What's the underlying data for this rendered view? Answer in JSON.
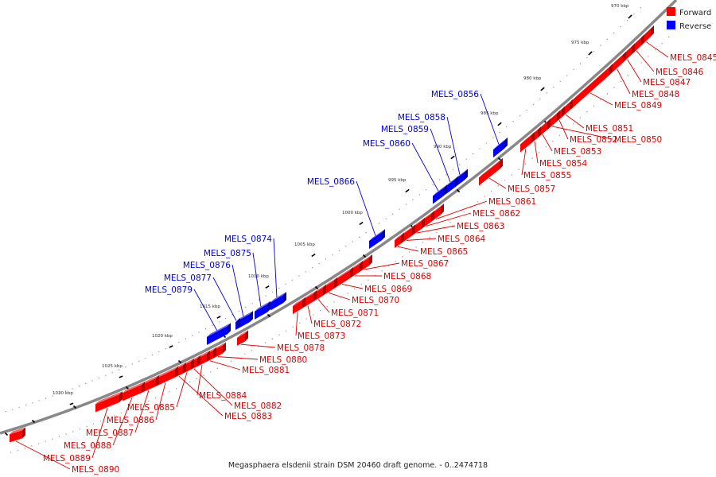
{
  "caption": "Megasphaera elsdenii strain DSM 20460 draft genome. - 0..2474718",
  "legend": [
    {
      "label": "Forward",
      "color": "#ff0000"
    },
    {
      "label": "Reverse",
      "color": "#0000ff"
    }
  ],
  "colors": {
    "forward": "#ff0000",
    "reverse": "#0000ff",
    "backbone": "#888888"
  },
  "ticks": [
    "970 kbp",
    "975 kbp",
    "980 kbp",
    "985 kbp",
    "990 kbp",
    "995 kbp",
    "1000 kbp",
    "1005 kbp",
    "1010 kbp",
    "1015 kbp",
    "1020 kbp",
    "1025 kbp",
    "1030 kbp"
  ],
  "forward_genes": [
    "MELS_0845",
    "MELS_0846",
    "MELS_0847",
    "MELS_0848",
    "MELS_0849",
    "MELS_0851",
    "MELS_0852",
    "MELS_0850",
    "MELS_0853",
    "MELS_0854",
    "MELS_0855",
    "MELS_0857",
    "MELS_0861",
    "MELS_0862",
    "MELS_0863",
    "MELS_0864",
    "MELS_0865",
    "MELS_0867",
    "MELS_0868",
    "MELS_0869",
    "MELS_0870",
    "MELS_0871",
    "MELS_0872",
    "MELS_0873",
    "MELS_0878",
    "MELS_0880",
    "MELS_0881",
    "MELS_0884",
    "MELS_0882",
    "MELS_0885",
    "MELS_0883",
    "MELS_0886",
    "MELS_0887",
    "MELS_0888",
    "MELS_0889",
    "MELS_0890"
  ],
  "reverse_genes": [
    "MELS_0856",
    "MELS_0858",
    "MELS_0859",
    "MELS_0860",
    "MELS_0866",
    "MELS_0874",
    "MELS_0875",
    "MELS_0876",
    "MELS_0877",
    "MELS_0879"
  ]
}
